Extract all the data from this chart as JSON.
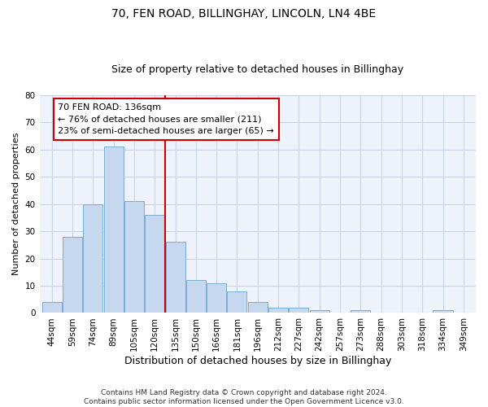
{
  "title1": "70, FEN ROAD, BILLINGHAY, LINCOLN, LN4 4BE",
  "title2": "Size of property relative to detached houses in Billinghay",
  "xlabel": "Distribution of detached houses by size in Billinghay",
  "ylabel": "Number of detached properties",
  "categories": [
    "44sqm",
    "59sqm",
    "74sqm",
    "89sqm",
    "105sqm",
    "120sqm",
    "135sqm",
    "150sqm",
    "166sqm",
    "181sqm",
    "196sqm",
    "212sqm",
    "227sqm",
    "242sqm",
    "257sqm",
    "273sqm",
    "288sqm",
    "303sqm",
    "318sqm",
    "334sqm",
    "349sqm"
  ],
  "values": [
    4,
    28,
    40,
    61,
    41,
    36,
    26,
    12,
    11,
    8,
    4,
    2,
    2,
    1,
    0,
    1,
    0,
    0,
    0,
    1,
    0
  ],
  "bar_color": "#c5d8f0",
  "bar_edge_color": "#7aadd4",
  "vline_x_index": 5.5,
  "annotation_text_line1": "70 FEN ROAD: 136sqm",
  "annotation_text_line2": "← 76% of detached houses are smaller (211)",
  "annotation_text_line3": "23% of semi-detached houses are larger (65) →",
  "annotation_box_color": "#ffffff",
  "annotation_box_edge_color": "#cc0000",
  "vline_color": "#cc0000",
  "ylim": [
    0,
    80
  ],
  "yticks": [
    0,
    10,
    20,
    30,
    40,
    50,
    60,
    70,
    80
  ],
  "grid_color": "#c8d4e8",
  "background_color": "#eef2fa",
  "footer": "Contains HM Land Registry data © Crown copyright and database right 2024.\nContains public sector information licensed under the Open Government Licence v3.0.",
  "title1_fontsize": 10,
  "title2_fontsize": 9,
  "xlabel_fontsize": 9,
  "ylabel_fontsize": 8,
  "tick_fontsize": 7.5,
  "annotation_fontsize": 8,
  "footer_fontsize": 6.5
}
